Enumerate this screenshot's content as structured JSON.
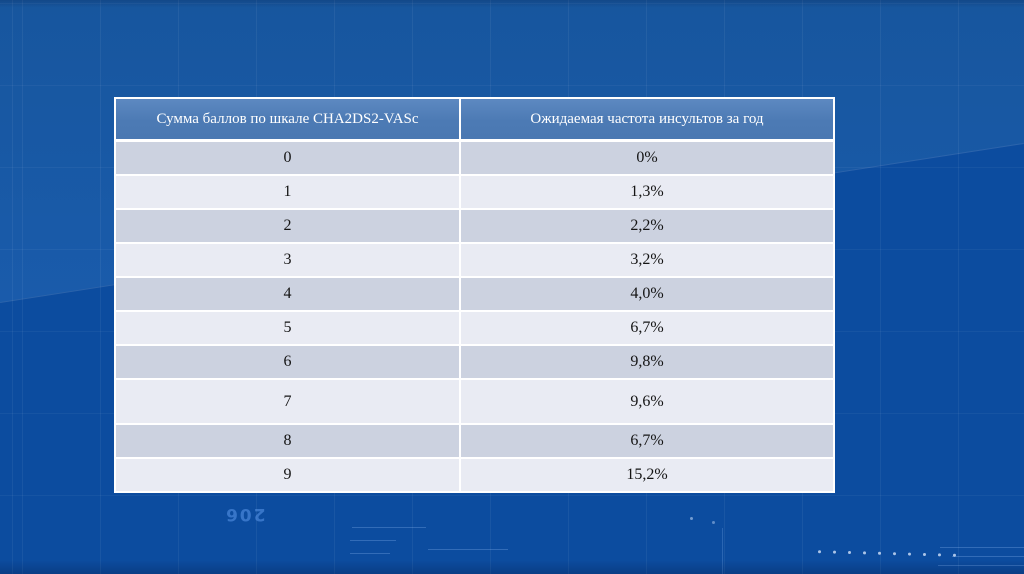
{
  "slide": {
    "watermark": "206"
  },
  "table": {
    "columns": [
      "Сумма баллов по шкале CHA2DS2-VASc",
      "Ожидаемая частота инсультов за год"
    ],
    "rows": [
      {
        "score": "0",
        "rate": "0%"
      },
      {
        "score": "1",
        "rate": "1,3%"
      },
      {
        "score": "2",
        "rate": "2,2%"
      },
      {
        "score": "3",
        "rate": "3,2%"
      },
      {
        "score": "4",
        "rate": "4,0%"
      },
      {
        "score": "5",
        "rate": "6,7%"
      },
      {
        "score": "6",
        "rate": "9,8%"
      },
      {
        "score": "7",
        "rate": "9,6%"
      },
      {
        "score": "8",
        "rate": "6,7%"
      },
      {
        "score": "9",
        "rate": "15,2%"
      }
    ]
  },
  "colors": {
    "background_dark": "#0c4c9f",
    "background_light": "#1a5bab",
    "header_bg": "#4c7ab4",
    "header_text": "#ffffff",
    "row_dark": "#ccd2e0",
    "row_light": "#e9ebf3",
    "table_border": "#ffffff",
    "cell_text": "#141414"
  }
}
